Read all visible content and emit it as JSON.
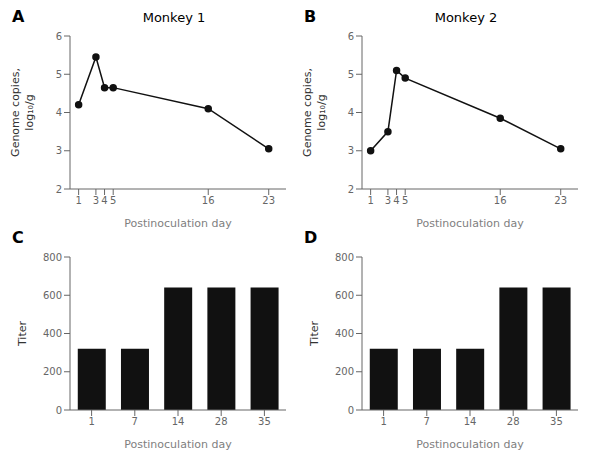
{
  "chart_data": [
    {
      "type": "line",
      "title": "Monkey 1",
      "annotations": [
        "A"
      ],
      "x": [
        1,
        3,
        4,
        5,
        16,
        23
      ],
      "values": [
        4.2,
        5.45,
        4.65,
        4.65,
        4.1,
        3.05
      ],
      "color": "#111111",
      "marker": "circle",
      "xlabel": "Postinoculation day",
      "ylabel": "Genome copies,\nlog₁₀/g",
      "xlim": [
        0,
        25
      ],
      "xticks": [
        1,
        3,
        4,
        5,
        16,
        23
      ],
      "ylim": [
        2,
        6
      ],
      "yticks": [
        2,
        3,
        4,
        5,
        6
      ],
      "grid": false
    },
    {
      "type": "line",
      "title": "Monkey 2",
      "annotations": [
        "B"
      ],
      "x": [
        1,
        3,
        4,
        5,
        16,
        23
      ],
      "values": [
        3.0,
        3.5,
        5.1,
        4.9,
        3.85,
        3.05
      ],
      "color": "#111111",
      "marker": "circle",
      "xlabel": "Postinoculation day",
      "ylabel": "Genome copies,\nlog₁₀/g",
      "xlim": [
        0,
        25
      ],
      "xticks": [
        1,
        3,
        4,
        5,
        16,
        23
      ],
      "ylim": [
        2,
        6
      ],
      "yticks": [
        2,
        3,
        4,
        5,
        6
      ],
      "grid": false
    },
    {
      "type": "bar",
      "annotations": [
        "C"
      ],
      "categories": [
        "1",
        "7",
        "14",
        "28",
        "35"
      ],
      "values": [
        320,
        320,
        640,
        640,
        640
      ],
      "color": "#111111",
      "xlabel": "Postinoculation day",
      "ylabel": "Titer",
      "ylim": [
        0,
        800
      ],
      "yticks": [
        0,
        200,
        400,
        600,
        800
      ],
      "grid": false
    },
    {
      "type": "bar",
      "annotations": [
        "D"
      ],
      "categories": [
        "1",
        "7",
        "14",
        "28",
        "35"
      ],
      "values": [
        320,
        320,
        320,
        640,
        640
      ],
      "color": "#111111",
      "xlabel": "Postinoculation day",
      "ylabel": "Titer",
      "ylim": [
        0,
        800
      ],
      "yticks": [
        0,
        200,
        400,
        600,
        800
      ],
      "grid": false
    }
  ]
}
